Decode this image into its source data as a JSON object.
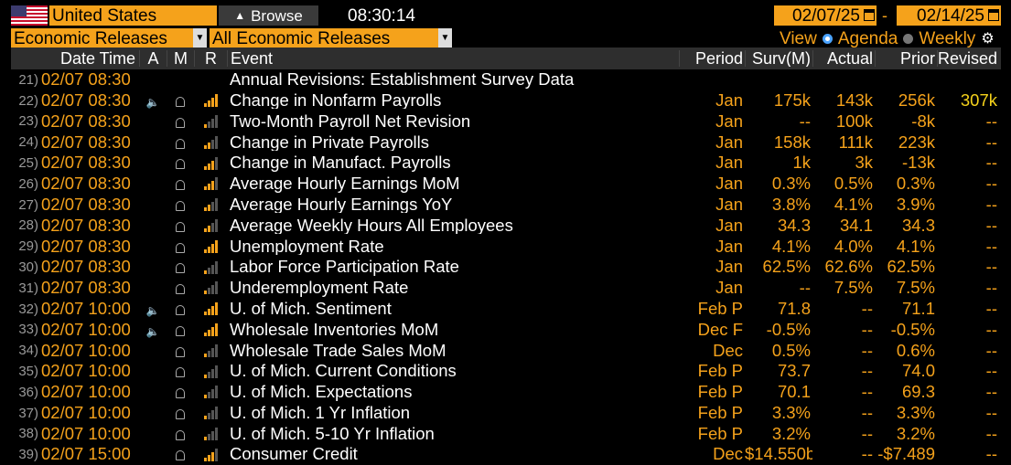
{
  "toolbar": {
    "country": "United States",
    "browse_label": "Browse",
    "time": "08:30:14",
    "date_from": "02/07/25",
    "date_sep": "-",
    "date_to": "02/14/25"
  },
  "filters": {
    "category": "Economic Releases",
    "subcategory": "All Economic Releases",
    "view_label": "View",
    "agenda_label": "Agenda",
    "weekly_label": "Weekly"
  },
  "columns": {
    "datetime": "Date Time",
    "a": "A",
    "m": "M",
    "r": "R",
    "event": "Event",
    "period": "Period",
    "surv": "Surv(M)",
    "actual": "Actual",
    "prior": "Prior",
    "revised": "Revised"
  },
  "colors": {
    "accent": "#f5a21b",
    "header_bg": "#2e2e2e",
    "background": "#000000"
  },
  "rows": [
    {
      "num": "21)",
      "dt": "02/07 08:30",
      "speaker": false,
      "bell": false,
      "rel": 0,
      "event": "Annual Revisions: Establishment Survey Data",
      "period": "",
      "surv": "",
      "actual": "",
      "prior": "",
      "revised": ""
    },
    {
      "num": "22)",
      "dt": "02/07 08:30",
      "speaker": true,
      "bell": true,
      "rel": 4,
      "event": "Change in Nonfarm Payrolls",
      "period": "Jan",
      "surv": "175k",
      "actual": "143k",
      "prior": "256k",
      "revised": "307k"
    },
    {
      "num": "23)",
      "dt": "02/07 08:30",
      "speaker": false,
      "bell": true,
      "rel": 1,
      "event": "Two-Month Payroll Net Revision",
      "period": "Jan",
      "surv": "--",
      "actual": "100k",
      "prior": "-8k",
      "revised": "--"
    },
    {
      "num": "24)",
      "dt": "02/07 08:30",
      "speaker": false,
      "bell": true,
      "rel": 2,
      "event": "Change in Private Payrolls",
      "period": "Jan",
      "surv": "158k",
      "actual": "111k",
      "prior": "223k",
      "revised": "--"
    },
    {
      "num": "25)",
      "dt": "02/07 08:30",
      "speaker": false,
      "bell": true,
      "rel": 3,
      "event": "Change in Manufact. Payrolls",
      "period": "Jan",
      "surv": "1k",
      "actual": "3k",
      "prior": "-13k",
      "revised": "--"
    },
    {
      "num": "26)",
      "dt": "02/07 08:30",
      "speaker": false,
      "bell": true,
      "rel": 3,
      "event": "Average Hourly Earnings MoM",
      "period": "Jan",
      "surv": "0.3%",
      "actual": "0.5%",
      "prior": "0.3%",
      "revised": "--"
    },
    {
      "num": "27)",
      "dt": "02/07 08:30",
      "speaker": false,
      "bell": true,
      "rel": 2,
      "event": "Average Hourly Earnings YoY",
      "period": "Jan",
      "surv": "3.8%",
      "actual": "4.1%",
      "prior": "3.9%",
      "revised": "--"
    },
    {
      "num": "28)",
      "dt": "02/07 08:30",
      "speaker": false,
      "bell": true,
      "rel": 2,
      "event": "Average Weekly Hours All Employees",
      "period": "Jan",
      "surv": "34.3",
      "actual": "34.1",
      "prior": "34.3",
      "revised": "--"
    },
    {
      "num": "29)",
      "dt": "02/07 08:30",
      "speaker": false,
      "bell": true,
      "rel": 4,
      "event": "Unemployment Rate",
      "period": "Jan",
      "surv": "4.1%",
      "actual": "4.0%",
      "prior": "4.1%",
      "revised": "--"
    },
    {
      "num": "30)",
      "dt": "02/07 08:30",
      "speaker": false,
      "bell": true,
      "rel": 1,
      "event": "Labor Force Participation Rate",
      "period": "Jan",
      "surv": "62.5%",
      "actual": "62.6%",
      "prior": "62.5%",
      "revised": "--"
    },
    {
      "num": "31)",
      "dt": "02/07 08:30",
      "speaker": false,
      "bell": true,
      "rel": 1,
      "event": "Underemployment Rate",
      "period": "Jan",
      "surv": "--",
      "actual": "7.5%",
      "prior": "7.5%",
      "revised": "--"
    },
    {
      "num": "32)",
      "dt": "02/07 10:00",
      "speaker": true,
      "bell": true,
      "rel": 4,
      "event": "U. of Mich. Sentiment",
      "period": "Feb P",
      "surv": "71.8",
      "actual": "--",
      "prior": "71.1",
      "revised": "--"
    },
    {
      "num": "33)",
      "dt": "02/07 10:00",
      "speaker": true,
      "bell": true,
      "rel": 4,
      "event": "Wholesale Inventories MoM",
      "period": "Dec F",
      "surv": "-0.5%",
      "actual": "--",
      "prior": "-0.5%",
      "revised": "--"
    },
    {
      "num": "34)",
      "dt": "02/07 10:00",
      "speaker": false,
      "bell": true,
      "rel": 1,
      "event": "Wholesale Trade Sales MoM",
      "period": "Dec",
      "surv": "0.5%",
      "actual": "--",
      "prior": "0.6%",
      "revised": "--"
    },
    {
      "num": "35)",
      "dt": "02/07 10:00",
      "speaker": false,
      "bell": true,
      "rel": 1,
      "event": "U. of Mich. Current Conditions",
      "period": "Feb P",
      "surv": "73.7",
      "actual": "--",
      "prior": "74.0",
      "revised": "--"
    },
    {
      "num": "36)",
      "dt": "02/07 10:00",
      "speaker": false,
      "bell": true,
      "rel": 1,
      "event": "U. of Mich. Expectations",
      "period": "Feb P",
      "surv": "70.1",
      "actual": "--",
      "prior": "69.3",
      "revised": "--"
    },
    {
      "num": "37)",
      "dt": "02/07 10:00",
      "speaker": false,
      "bell": true,
      "rel": 1,
      "event": "U. of Mich. 1 Yr Inflation",
      "period": "Feb P",
      "surv": "3.3%",
      "actual": "--",
      "prior": "3.3%",
      "revised": "--"
    },
    {
      "num": "38)",
      "dt": "02/07 10:00",
      "speaker": false,
      "bell": true,
      "rel": 1,
      "event": "U. of Mich. 5-10 Yr Inflation",
      "period": "Feb P",
      "surv": "3.2%",
      "actual": "--",
      "prior": "3.2%",
      "revised": "--"
    },
    {
      "num": "39)",
      "dt": "02/07 15:00",
      "speaker": false,
      "bell": true,
      "rel": 3,
      "event": "Consumer Credit",
      "period": "Dec",
      "surv": "$14.550b",
      "actual": "--",
      "prior": "-$7.489",
      "revised": "--"
    }
  ]
}
